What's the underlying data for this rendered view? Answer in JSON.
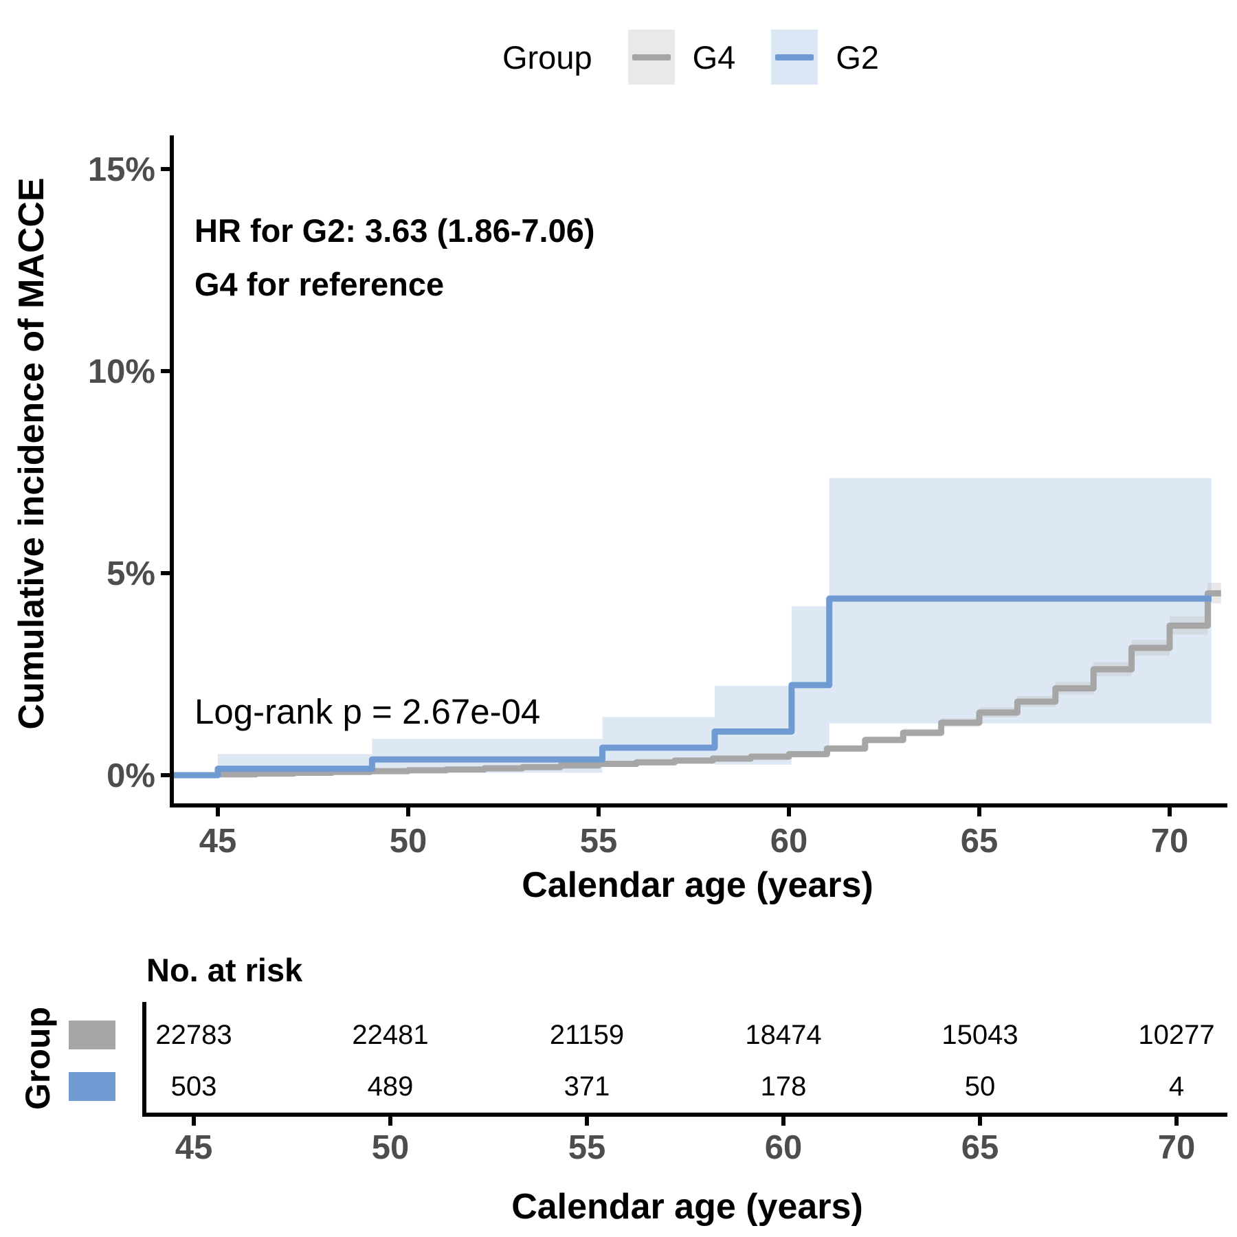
{
  "legend": {
    "title": "Group",
    "items": [
      {
        "label": "G4",
        "line_color": "#a6a6a6",
        "key_bg": "#e9e9e9"
      },
      {
        "label": "G2",
        "line_color": "#6f9ad2",
        "key_bg": "#dce7f5"
      }
    ]
  },
  "annotations": {
    "hr": "HR for G2: 3.63 (1.86-7.06)",
    "reference": "G4 for reference",
    "logrank": "Log-rank p = 2.67e-04"
  },
  "chart_data": {
    "type": "line",
    "subtype": "step-cumulative-incidence",
    "xlabel": "Calendar age (years)",
    "ylabel": "Cumulative incidence of MACCE",
    "xlim": [
      43.79,
      71.4
    ],
    "ylim": [
      0,
      16.3
    ],
    "x_ticks": [
      45,
      50,
      55,
      60,
      65,
      70
    ],
    "y_ticks": [
      {
        "value": 0,
        "label": "0%"
      },
      {
        "value": 5,
        "label": "5%"
      },
      {
        "value": 10,
        "label": "10%"
      },
      {
        "value": 15,
        "label": "15%"
      }
    ],
    "grid": false,
    "legend_position": "top",
    "series": [
      {
        "name": "G4",
        "color": "#a6a6a6",
        "band_color": "#bdbdbd",
        "band_opacity": 0.35,
        "step_x": [
          43.79,
          45,
          46,
          47,
          48,
          49,
          50,
          51,
          52,
          53,
          54,
          55,
          56,
          57,
          58,
          59,
          60,
          61,
          62,
          63,
          64,
          65,
          66,
          67,
          68,
          69,
          70,
          71
        ],
        "step_y": [
          0,
          0.02,
          0.04,
          0.06,
          0.08,
          0.1,
          0.12,
          0.14,
          0.17,
          0.2,
          0.24,
          0.28,
          0.32,
          0.36,
          0.41,
          0.46,
          0.52,
          0.66,
          0.87,
          1.05,
          1.3,
          1.55,
          1.82,
          2.15,
          2.62,
          3.15,
          3.7,
          4.5
        ],
        "end_x": 71.35,
        "band": {
          "x": [
            43.79,
            45,
            46,
            47,
            48,
            49,
            50,
            51,
            52,
            53,
            54,
            55,
            56,
            57,
            58,
            59,
            60,
            61,
            62,
            63,
            64,
            65,
            66,
            67,
            68,
            69,
            70,
            71
          ],
          "lower": [
            0,
            0.01,
            0.02,
            0.04,
            0.06,
            0.08,
            0.1,
            0.12,
            0.14,
            0.17,
            0.21,
            0.24,
            0.28,
            0.32,
            0.36,
            0.41,
            0.46,
            0.59,
            0.79,
            0.96,
            1.19,
            1.43,
            1.69,
            2.0,
            2.45,
            2.96,
            3.48,
            4.25
          ],
          "upper": [
            0,
            0.04,
            0.07,
            0.09,
            0.11,
            0.13,
            0.15,
            0.17,
            0.2,
            0.24,
            0.28,
            0.32,
            0.37,
            0.41,
            0.46,
            0.52,
            0.58,
            0.74,
            0.96,
            1.15,
            1.41,
            1.68,
            1.96,
            2.31,
            2.8,
            3.35,
            3.93,
            4.76
          ],
          "end_x": 71.35
        }
      },
      {
        "name": "G2",
        "color": "#6f9ad2",
        "band_color": "#dee8f5",
        "band_opacity": 1,
        "step_x": [
          43.79,
          45,
          49.05,
          55.1,
          58.05,
          60.07,
          61.06
        ],
        "step_y": [
          0,
          0.16,
          0.39,
          0.68,
          1.08,
          2.23,
          4.37
        ],
        "end_x": 71.1,
        "band": {
          "x": [
            45,
            49.05,
            55.1,
            58.05,
            60.07,
            61.06
          ],
          "lower": [
            0.01,
            0.06,
            0.31,
            0.26,
            0.56,
            1.28
          ],
          "upper": [
            0.52,
            0.9,
            1.44,
            2.21,
            4.18,
            7.35
          ],
          "end_x": 71.1
        }
      }
    ]
  },
  "risk_table": {
    "title": "No. at risk",
    "group_label": "Group",
    "xlabel": "Calendar age (years)",
    "columns": [
      45,
      50,
      55,
      60,
      65,
      70
    ],
    "rows": [
      {
        "group": "G4",
        "color": "#a6a6a6",
        "values": [
          "22783",
          "22481",
          "21159",
          "18474",
          "15043",
          "10277"
        ]
      },
      {
        "group": "G2",
        "color": "#6f9ad2",
        "values": [
          "503",
          "489",
          "371",
          "178",
          "50",
          "4"
        ]
      }
    ]
  },
  "style_colors": {
    "axis_line": "#000000",
    "tick_label": "#4d4d4d",
    "risk_number": "#000000"
  }
}
